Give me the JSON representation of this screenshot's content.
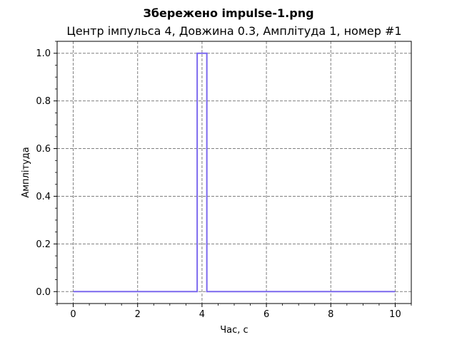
{
  "figure": {
    "suptitle": "Збережено impulse-1.png"
  },
  "chart_data": {
    "type": "line",
    "title": "Центр імпульса 4, Довжина 0.3, Амплітуда 1, номер #1",
    "xlabel": "Час, с",
    "ylabel": "Амплітуда",
    "xlim": [
      -0.5,
      10.5
    ],
    "ylim": [
      -0.05,
      1.05
    ],
    "xticks": [
      0,
      2,
      4,
      6,
      8,
      10
    ],
    "yticks": [
      0.0,
      0.2,
      0.4,
      0.6,
      0.8,
      1.0
    ],
    "xtick_labels": [
      "0",
      "2",
      "4",
      "6",
      "8",
      "10"
    ],
    "ytick_labels": [
      "0.0",
      "0.2",
      "0.4",
      "0.6",
      "0.8",
      "1.0"
    ],
    "minor_ticks": true,
    "grid": true,
    "grid_style": "dashed",
    "grid_color": "#808080",
    "series": [
      {
        "color": "#7b68ee",
        "x": [
          0,
          3.85,
          3.85,
          4.15,
          4.15,
          10
        ],
        "y": [
          0,
          0,
          1,
          1,
          0,
          0
        ]
      }
    ]
  }
}
